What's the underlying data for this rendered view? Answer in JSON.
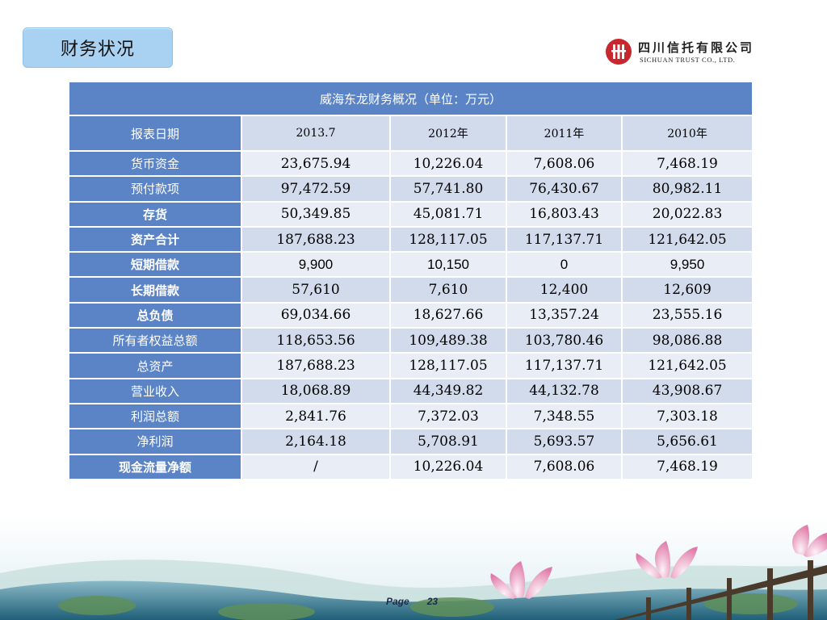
{
  "slide": {
    "title": "财务状况",
    "logo": {
      "name_cn": "四川信托有限公司",
      "name_en": "SICHUAN TRUST CO., LTD."
    },
    "page_label": "Page",
    "page_number": "23"
  },
  "table": {
    "caption": "威海东龙财务概况（单位：万元）",
    "header_label": "报表日期",
    "periods": [
      "2013.7",
      "2012年",
      "2011年",
      "2010年"
    ],
    "rows": [
      {
        "label": "货币资金",
        "values": [
          "23,675.94",
          "10,226.04",
          "7,608.06",
          "7,468.19"
        ]
      },
      {
        "label": "预付款项",
        "values": [
          "97,472.59",
          "57,741.80",
          "76,430.67",
          "80,982.11"
        ]
      },
      {
        "label": "存货",
        "values": [
          "50,349.85",
          "45,081.71",
          "16,803.43",
          "20,022.83"
        ]
      },
      {
        "label": "资产合计",
        "values": [
          "187,688.23",
          "128,117.05",
          "117,137.71",
          "121,642.05"
        ]
      },
      {
        "label": "短期借款",
        "values": [
          "9,900",
          "10,150",
          "0",
          "9,950"
        ]
      },
      {
        "label": "长期借款",
        "values": [
          "57,610",
          "7,610",
          "12,400",
          "12,609"
        ]
      },
      {
        "label": "总负债",
        "values": [
          "69,034.66",
          "18,627.66",
          "13,357.24",
          "23,555.16"
        ]
      },
      {
        "label": "所有者权益总额",
        "values": [
          "118,653.56",
          "109,489.38",
          "103,780.46",
          "98,086.88"
        ]
      },
      {
        "label": "总资产",
        "values": [
          "187,688.23",
          "128,117.05",
          "117,137.71",
          "121,642.05"
        ]
      },
      {
        "label": "营业收入",
        "values": [
          "18,068.89",
          "44,349.82",
          "44,132.78",
          "43,908.67"
        ]
      },
      {
        "label": "利润总额",
        "values": [
          "2,841.76",
          "7,372.03",
          "7,348.55",
          "7,303.18"
        ]
      },
      {
        "label": "净利润",
        "values": [
          "2,164.18",
          "5,708.91",
          "5,693.57",
          "5,656.61"
        ]
      },
      {
        "label": "现金流量净额",
        "values": [
          "/",
          "10,226.04",
          "7,608.06",
          "7,468.19"
        ]
      }
    ]
  },
  "colors": {
    "header_blue": "#5b84c6",
    "band_dark": "#d1dbeb",
    "band_light": "#e9edf5",
    "title_box": "#a9d2f2"
  }
}
